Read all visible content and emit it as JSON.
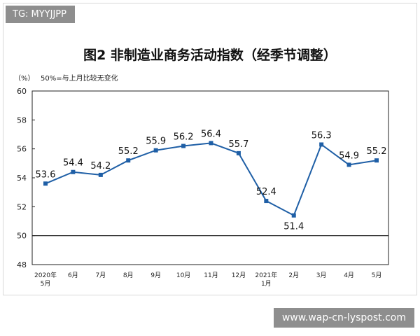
{
  "watermark_top": "TG: MYYJJPP",
  "watermark_bottom": "www.wap-cn-lyspost.com",
  "chart_data": {
    "type": "line",
    "title": "图2  非制造业商务活动指数（经季节调整）",
    "yunit": "（%）",
    "note": "50%=与上月比较无变化",
    "ylim": [
      48,
      60
    ],
    "yticks": [
      48,
      50,
      52,
      54,
      56,
      58,
      60
    ],
    "reference_line": 50,
    "categories": [
      [
        "2020年",
        "5月"
      ],
      [
        "6月"
      ],
      [
        "7月"
      ],
      [
        "8月"
      ],
      [
        "9月"
      ],
      [
        "10月"
      ],
      [
        "11月"
      ],
      [
        "12月"
      ],
      [
        "2021年",
        "1月"
      ],
      [
        "2月"
      ],
      [
        "3月"
      ],
      [
        "4月"
      ],
      [
        "5月"
      ]
    ],
    "values": [
      53.6,
      54.4,
      54.2,
      55.2,
      55.9,
      56.2,
      56.4,
      55.7,
      52.4,
      51.4,
      56.3,
      54.9,
      55.2
    ],
    "color": "#1f5fa6",
    "grid": false
  }
}
